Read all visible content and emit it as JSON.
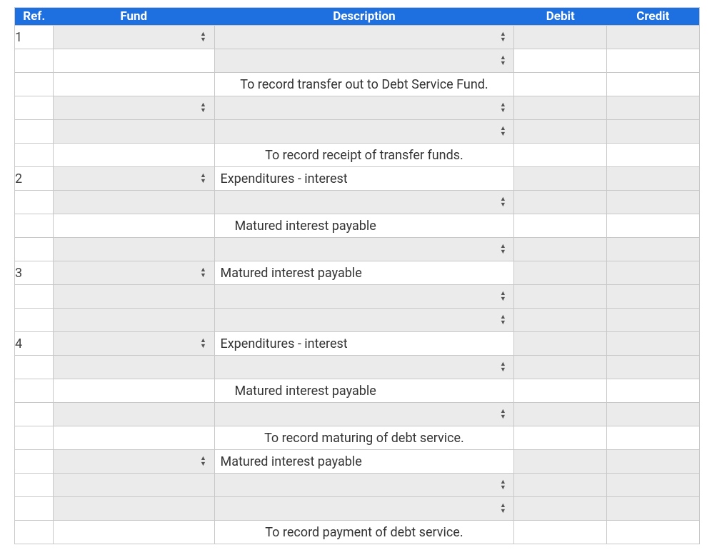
{
  "header": {
    "bg_color": "#1e6fe0",
    "text_color": "#ffffff",
    "ref": "Ref.",
    "fund": "Fund",
    "description": "Description",
    "debit": "Debit",
    "credit": "Credit"
  },
  "rows": [
    {
      "ref": "1",
      "fund_dd": true,
      "desc_dd": true,
      "grey": true,
      "desc": ""
    },
    {
      "ref": "",
      "fund_dd": false,
      "desc_dd": true,
      "grey": false,
      "desc": ""
    },
    {
      "ref": "",
      "fund_dd": false,
      "desc_dd": false,
      "grey": false,
      "desc": "To record transfer out to Debt Service Fund.",
      "align": "center"
    },
    {
      "ref": "",
      "fund_dd": true,
      "desc_dd": true,
      "grey": true,
      "desc": ""
    },
    {
      "ref": "",
      "fund_dd": false,
      "desc_dd": true,
      "grey": true,
      "desc": ""
    },
    {
      "ref": "",
      "fund_dd": false,
      "desc_dd": false,
      "grey": false,
      "desc": "To record receipt of transfer funds.",
      "align": "center"
    },
    {
      "ref": "2",
      "fund_dd": true,
      "desc_dd": false,
      "grey": true,
      "desc": "Expenditures - interest",
      "align": "left"
    },
    {
      "ref": "",
      "fund_dd": false,
      "desc_dd": true,
      "grey": true,
      "desc": ""
    },
    {
      "ref": "",
      "fund_dd": false,
      "desc_dd": false,
      "grey": false,
      "desc": "Matured interest payable",
      "align": "left",
      "indent": true
    },
    {
      "ref": "",
      "fund_dd": false,
      "desc_dd": true,
      "grey": true,
      "desc": ""
    },
    {
      "ref": "3",
      "fund_dd": true,
      "desc_dd": false,
      "grey": true,
      "desc": "Matured interest payable",
      "align": "left"
    },
    {
      "ref": "",
      "fund_dd": false,
      "desc_dd": true,
      "grey": true,
      "desc": ""
    },
    {
      "ref": "",
      "fund_dd": false,
      "desc_dd": true,
      "grey": true,
      "desc": ""
    },
    {
      "ref": "4",
      "fund_dd": true,
      "desc_dd": false,
      "grey": true,
      "desc": "Expenditures - interest",
      "align": "left"
    },
    {
      "ref": "",
      "fund_dd": false,
      "desc_dd": true,
      "grey": true,
      "desc": ""
    },
    {
      "ref": "",
      "fund_dd": false,
      "desc_dd": false,
      "grey": false,
      "desc": "Matured interest payable",
      "align": "left",
      "indent": true
    },
    {
      "ref": "",
      "fund_dd": false,
      "desc_dd": true,
      "grey": true,
      "desc": ""
    },
    {
      "ref": "",
      "fund_dd": false,
      "desc_dd": false,
      "grey": false,
      "desc": "To record maturing of debt service.",
      "align": "center"
    },
    {
      "ref": "",
      "fund_dd": true,
      "desc_dd": false,
      "grey": true,
      "desc": "Matured interest payable",
      "align": "left"
    },
    {
      "ref": "",
      "fund_dd": false,
      "desc_dd": true,
      "grey": true,
      "desc": ""
    },
    {
      "ref": "",
      "fund_dd": false,
      "desc_dd": true,
      "grey": true,
      "desc": ""
    },
    {
      "ref": "",
      "fund_dd": false,
      "desc_dd": false,
      "grey": false,
      "desc": "To record payment of debt service.",
      "align": "center"
    }
  ]
}
